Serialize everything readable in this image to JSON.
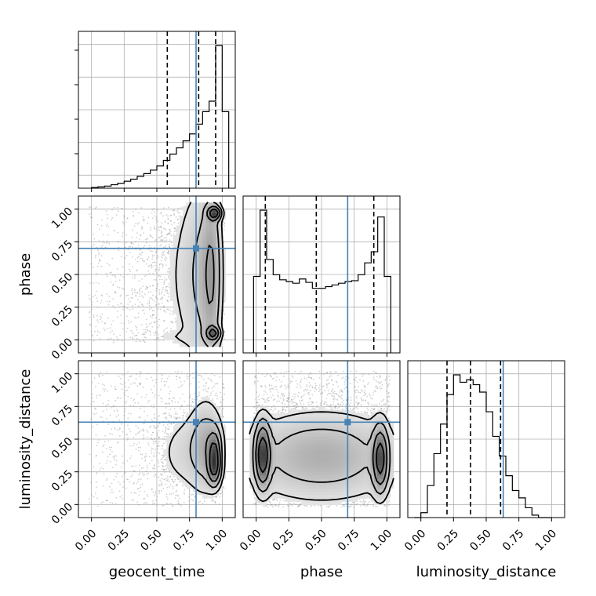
{
  "chart_data": {
    "type": "corner",
    "parameters": [
      "geocent_time",
      "phase",
      "luminosity_distance"
    ],
    "truths": {
      "geocent_time": 0.8,
      "phase": 0.7,
      "luminosity_distance": 0.63
    },
    "truth_color": "#4682b4",
    "grid": true,
    "tick_labels": [
      "0.00",
      "0.25",
      "0.50",
      "0.75",
      "1.00"
    ],
    "axis_range": [
      -0.1,
      1.1
    ],
    "marginals": [
      {
        "parameter": "geocent_time",
        "quantiles": [
          0.58,
          0.82,
          0.95
        ],
        "bin_edges": [
          0.0,
          0.05,
          0.1,
          0.15,
          0.2,
          0.25,
          0.3,
          0.35,
          0.4,
          0.45,
          0.5,
          0.55,
          0.6,
          0.65,
          0.7,
          0.75,
          0.8,
          0.85,
          0.9,
          0.95,
          1.0,
          1.05
        ],
        "counts": [
          1,
          2,
          3,
          5,
          7,
          10,
          13,
          17,
          21,
          26,
          32,
          40,
          49,
          58,
          68,
          78,
          92,
          110,
          125,
          205,
          110
        ]
      },
      {
        "parameter": "phase",
        "quantiles": [
          0.07,
          0.46,
          0.9
        ],
        "bin_edges": [
          -0.02,
          0.03,
          0.08,
          0.13,
          0.18,
          0.23,
          0.28,
          0.33,
          0.38,
          0.43,
          0.48,
          0.53,
          0.58,
          0.63,
          0.68,
          0.73,
          0.78,
          0.83,
          0.88,
          0.93,
          0.98,
          1.03
        ],
        "counts": [
          90,
          168,
          110,
          92,
          86,
          84,
          82,
          87,
          83,
          76,
          76,
          78,
          80,
          82,
          84,
          85,
          92,
          106,
          119,
          160,
          90
        ]
      },
      {
        "parameter": "luminosity_distance",
        "quantiles": [
          0.2,
          0.38,
          0.61
        ],
        "bin_edges": [
          -0.05,
          0.0,
          0.05,
          0.1,
          0.15,
          0.2,
          0.25,
          0.3,
          0.35,
          0.4,
          0.45,
          0.5,
          0.55,
          0.6,
          0.65,
          0.7,
          0.75,
          0.8,
          0.85,
          0.9,
          0.95,
          1.0
        ],
        "counts": [
          0,
          2,
          13,
          26,
          38,
          50,
          58,
          55,
          56,
          54,
          51,
          43,
          33,
          25,
          17,
          11,
          8,
          4,
          1,
          0,
          0
        ]
      }
    ],
    "pairs": [
      {
        "x": "geocent_time",
        "y": "phase",
        "blobs": [
          {
            "x": 0.94,
            "y": 0.97,
            "sx": 0.03,
            "sy": 0.03,
            "w": 1.0
          },
          {
            "x": 0.93,
            "y": 0.05,
            "sx": 0.03,
            "sy": 0.03,
            "w": 0.8
          },
          {
            "x": 0.92,
            "y": 0.5,
            "sx": 0.05,
            "sy": 0.45,
            "w": 0.45
          },
          {
            "x": 0.82,
            "y": 0.5,
            "sx": 0.08,
            "sy": 0.45,
            "w": 0.22
          },
          {
            "x": 0.65,
            "y": 0.5,
            "sx": 0.15,
            "sy": 0.5,
            "w": 0.1
          },
          {
            "x": 0.55,
            "y": 0.02,
            "sx": 0.25,
            "sy": 0.04,
            "w": 0.05
          }
        ],
        "levels": [
          0.7,
          0.42,
          0.22,
          0.1
        ]
      },
      {
        "x": "geocent_time",
        "y": "luminosity_distance",
        "blobs": [
          {
            "x": 0.94,
            "y": 0.4,
            "sx": 0.03,
            "sy": 0.1,
            "w": 1.0
          },
          {
            "x": 0.94,
            "y": 0.27,
            "sx": 0.03,
            "sy": 0.08,
            "w": 0.9
          },
          {
            "x": 0.88,
            "y": 0.45,
            "sx": 0.08,
            "sy": 0.22,
            "w": 0.5
          },
          {
            "x": 0.72,
            "y": 0.4,
            "sx": 0.15,
            "sy": 0.2,
            "w": 0.25
          }
        ],
        "levels": [
          0.7,
          0.42,
          0.22,
          0.1
        ]
      },
      {
        "x": "phase",
        "y": "luminosity_distance",
        "blobs": [
          {
            "x": 0.05,
            "y": 0.38,
            "sx": 0.035,
            "sy": 0.15,
            "w": 1.0
          },
          {
            "x": 0.95,
            "y": 0.35,
            "sx": 0.035,
            "sy": 0.15,
            "w": 0.9
          },
          {
            "x": 0.5,
            "y": 0.38,
            "sx": 0.35,
            "sy": 0.2,
            "w": 0.3
          },
          {
            "x": 0.5,
            "y": 0.35,
            "sx": 0.5,
            "sy": 0.25,
            "w": 0.12
          }
        ],
        "levels": [
          0.7,
          0.42,
          0.22,
          0.1
        ]
      }
    ]
  }
}
